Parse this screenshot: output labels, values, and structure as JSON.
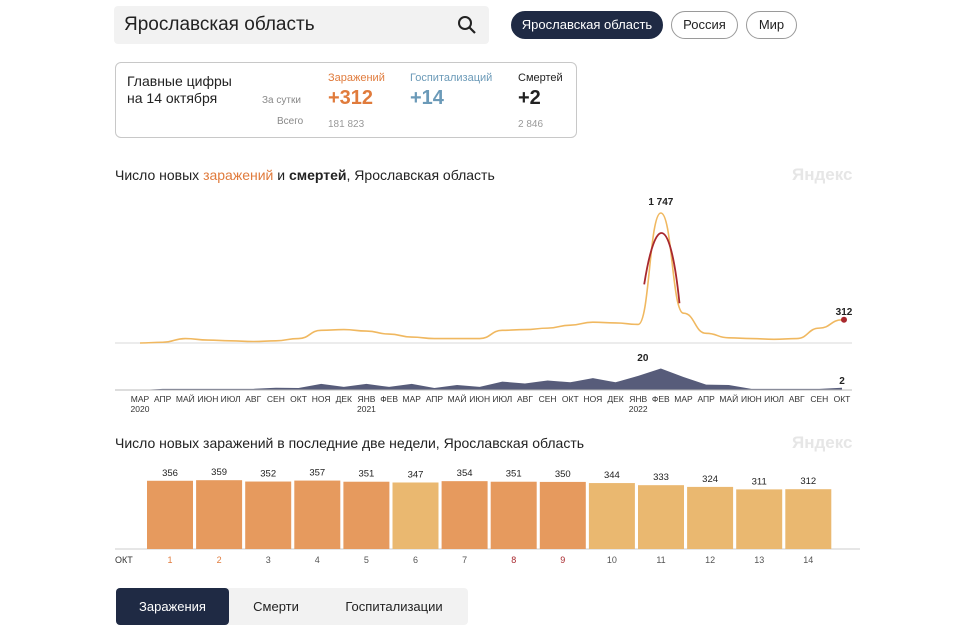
{
  "search": {
    "query": "Ярославская область"
  },
  "chips": [
    {
      "label": "Ярославская область",
      "active": true
    },
    {
      "label": "Россия",
      "active": false
    },
    {
      "label": "Мир",
      "active": false
    }
  ],
  "summary": {
    "heading_line1": "Главные цифры",
    "heading_line2": "на 14 октября",
    "row_daily": "За сутки",
    "row_total": "Всего",
    "infections": {
      "label": "Заражений",
      "daily": "+312",
      "total": "181 823",
      "color": "#e07b3c"
    },
    "hospital": {
      "label": "Госпитализаций",
      "daily": "+14",
      "total": "",
      "color": "#6b9ab8"
    },
    "deaths": {
      "label": "Смертей",
      "daily": "+2",
      "total": "2 846",
      "color": "#222222"
    }
  },
  "chart1": {
    "title_pre": "Число новых ",
    "title_inf": "заражений",
    "title_mid": " и ",
    "title_dth": "смертей",
    "title_post": ", Ярославская область",
    "watermark": "Яндекс"
  },
  "chart2": {
    "title": "Число новых заражений в последние две недели, Ярославская область",
    "watermark": "Яндекс"
  },
  "tabs": [
    {
      "label": "Заражения",
      "active": true
    },
    {
      "label": "Смерти",
      "active": false
    },
    {
      "label": "Госпитализации",
      "active": false
    }
  ],
  "chart_data": [
    {
      "type": "line",
      "x_labels": [
        "МАР 2020",
        "АПР",
        "МАЙ",
        "ИЮН",
        "ИЮЛ",
        "АВГ",
        "СЕН",
        "ОКТ",
        "НОЯ",
        "ДЕК",
        "ЯНВ 2021",
        "ФЕВ",
        "МАР",
        "АПР",
        "МАЙ",
        "ИЮН",
        "ИЮЛ",
        "АВГ",
        "СЕН",
        "ОКТ",
        "НОЯ",
        "ДЕК",
        "ЯНВ 2022",
        "ФЕВ",
        "МАР",
        "АПР",
        "МАЙ",
        "ИЮН",
        "ИЮЛ",
        "АВГ",
        "СЕН",
        "ОКТ"
      ],
      "tick_labels": [
        "МАР",
        "АПР",
        "МАЙ",
        "ИЮН",
        "ИЮЛ",
        "АВГ",
        "СЕН",
        "ОКТ",
        "НОЯ",
        "ДЕК",
        "ЯНВ",
        "ФЕВ",
        "МАР",
        "АПР",
        "МАЙ",
        "ИЮН",
        "ИЮЛ",
        "АВГ",
        "СЕН",
        "ОКТ",
        "НОЯ",
        "ДЕК",
        "ЯНВ",
        "ФЕВ",
        "МАР",
        "АПР",
        "МАЙ",
        "ИЮН",
        "ИЮЛ",
        "АВГ",
        "СЕН",
        "ОКТ"
      ],
      "year_labels": [
        {
          "index": 0,
          "text": "2020"
        },
        {
          "index": 10,
          "text": "2021"
        },
        {
          "index": 22,
          "text": "2022"
        }
      ],
      "series": [
        {
          "name": "заражений",
          "color": "#f0b860",
          "peak_color": "#a8282e",
          "values": [
            0,
            10,
            60,
            40,
            30,
            20,
            30,
            60,
            170,
            180,
            160,
            120,
            80,
            60,
            60,
            60,
            170,
            180,
            200,
            240,
            280,
            270,
            250,
            1747,
            400,
            130,
            70,
            60,
            50,
            60,
            200,
            312
          ]
        },
        {
          "name": "смертей",
          "color": "#3a3f63",
          "values": [
            0,
            1,
            1,
            1,
            1,
            1,
            2,
            3,
            4,
            4,
            4,
            4,
            4,
            3,
            3,
            4,
            6,
            7,
            7,
            8,
            9,
            8,
            11,
            20,
            10,
            6,
            3,
            1,
            1,
            1,
            1,
            2
          ]
        }
      ],
      "annotations": [
        {
          "series": "заражений",
          "index": 23,
          "label": "1 747"
        },
        {
          "series": "заражений",
          "index": 31,
          "label": "312"
        },
        {
          "series": "смертей",
          "index": 23,
          "label": "20"
        },
        {
          "series": "смертей",
          "index": 31,
          "label": "2"
        }
      ]
    },
    {
      "type": "bar",
      "month_label": "ОКТ",
      "categories": [
        "1",
        "2",
        "3",
        "4",
        "5",
        "6",
        "7",
        "8",
        "9",
        "10",
        "11",
        "12",
        "13",
        "14"
      ],
      "values": [
        356,
        359,
        352,
        357,
        351,
        347,
        354,
        351,
        350,
        344,
        333,
        324,
        311,
        312
      ],
      "bar_colors": [
        "#e69a5e",
        "#e69a5e",
        "#e69a5e",
        "#e69a5e",
        "#e69a5e",
        "#eab870",
        "#e69a5e",
        "#e69a5e",
        "#e69a5e",
        "#eab870",
        "#eab870",
        "#eab870",
        "#eab870",
        "#eab870"
      ],
      "tick_colors": [
        "#e07b3c",
        "#e07b3c",
        "#555555",
        "#555555",
        "#555555",
        "#555555",
        "#555555",
        "#a8282e",
        "#a8282e",
        "#555555",
        "#555555",
        "#555555",
        "#555555",
        "#555555"
      ],
      "ylim": [
        0,
        360
      ]
    }
  ]
}
